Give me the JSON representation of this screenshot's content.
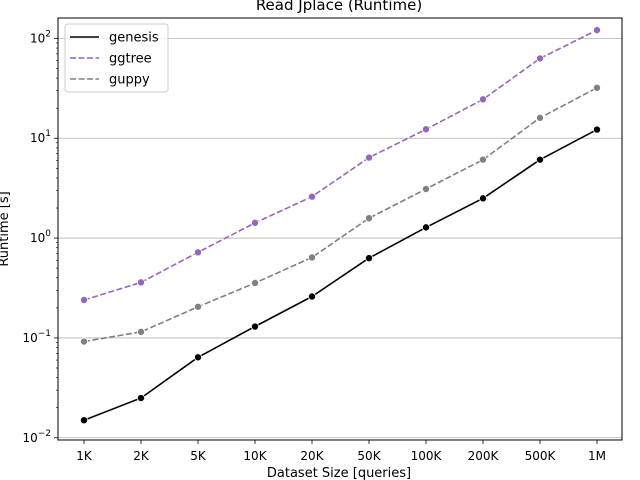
{
  "chart_data": {
    "type": "line",
    "title": "Read Jplace  (Runtime)",
    "xlabel": "Dataset Size  [queries]",
    "ylabel": "Runtime  [s]",
    "categories": [
      "1K",
      "2K",
      "5K",
      "10K",
      "20K",
      "50K",
      "100K",
      "200K",
      "500K",
      "1M"
    ],
    "y_scale": "log",
    "ylim": [
      0.0095,
      160
    ],
    "y_ticks": [
      {
        "value": 0.01,
        "base": "10",
        "exp": "−2"
      },
      {
        "value": 0.1,
        "base": "10",
        "exp": "−1"
      },
      {
        "value": 1,
        "base": "10",
        "exp": "0"
      },
      {
        "value": 10,
        "base": "10",
        "exp": "1"
      },
      {
        "value": 100,
        "base": "10",
        "exp": "2"
      }
    ],
    "grid": "horizontal",
    "legend_position": "top-left",
    "series": [
      {
        "name": "genesis",
        "color": "#000000",
        "dashed": false,
        "values": [
          0.015,
          0.025,
          0.064,
          0.13,
          0.26,
          0.63,
          1.28,
          2.5,
          6.1,
          12.2
        ]
      },
      {
        "name": "ggtree",
        "color": "#9467bd",
        "dashed": true,
        "values": [
          0.24,
          0.36,
          0.72,
          1.42,
          2.6,
          6.4,
          12.3,
          24.5,
          63,
          121
        ]
      },
      {
        "name": "guppy",
        "color": "#808080",
        "dashed": true,
        "values": [
          0.092,
          0.115,
          0.205,
          0.355,
          0.64,
          1.58,
          3.1,
          6.1,
          16,
          32
        ]
      }
    ]
  }
}
